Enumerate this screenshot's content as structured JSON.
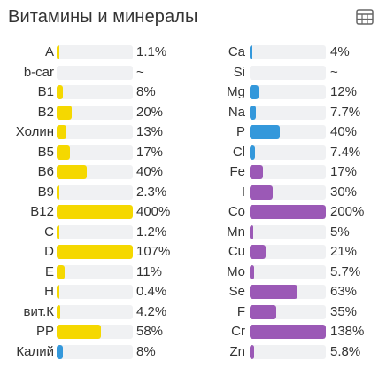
{
  "title": "Витамины и минералы",
  "colors": {
    "vitamin": "#f5d800",
    "mineral": "#9b59b6",
    "macro": "#3498db"
  },
  "left": [
    {
      "label": "A",
      "value": "1.1%",
      "pct": 1.1,
      "color": "#f5d800"
    },
    {
      "label": "b-car",
      "value": "~",
      "pct": 0,
      "color": "#f5d800"
    },
    {
      "label": "B1",
      "value": "8%",
      "pct": 8,
      "color": "#f5d800"
    },
    {
      "label": "B2",
      "value": "20%",
      "pct": 20,
      "color": "#f5d800"
    },
    {
      "label": "Холин",
      "value": "13%",
      "pct": 13,
      "color": "#f5d800"
    },
    {
      "label": "B5",
      "value": "17%",
      "pct": 17,
      "color": "#f5d800"
    },
    {
      "label": "B6",
      "value": "40%",
      "pct": 40,
      "color": "#f5d800"
    },
    {
      "label": "B9",
      "value": "2.3%",
      "pct": 2.3,
      "color": "#f5d800"
    },
    {
      "label": "B12",
      "value": "400%",
      "pct": 400,
      "color": "#f5d800"
    },
    {
      "label": "C",
      "value": "1.2%",
      "pct": 1.2,
      "color": "#f5d800"
    },
    {
      "label": "D",
      "value": "107%",
      "pct": 107,
      "color": "#f5d800"
    },
    {
      "label": "E",
      "value": "11%",
      "pct": 11,
      "color": "#f5d800"
    },
    {
      "label": "H",
      "value": "0.4%",
      "pct": 0.4,
      "color": "#f5d800"
    },
    {
      "label": "вит.К",
      "value": "4.2%",
      "pct": 4.2,
      "color": "#f5d800"
    },
    {
      "label": "PP",
      "value": "58%",
      "pct": 58,
      "color": "#f5d800"
    },
    {
      "label": "Калий",
      "value": "8%",
      "pct": 8,
      "color": "#3498db"
    }
  ],
  "right": [
    {
      "label": "Ca",
      "value": "4%",
      "pct": 4,
      "color": "#3498db"
    },
    {
      "label": "Si",
      "value": "~",
      "pct": 0,
      "color": "#3498db"
    },
    {
      "label": "Mg",
      "value": "12%",
      "pct": 12,
      "color": "#3498db"
    },
    {
      "label": "Na",
      "value": "7.7%",
      "pct": 7.7,
      "color": "#3498db"
    },
    {
      "label": "P",
      "value": "40%",
      "pct": 40,
      "color": "#3498db"
    },
    {
      "label": "Cl",
      "value": "7.4%",
      "pct": 7.4,
      "color": "#3498db"
    },
    {
      "label": "Fe",
      "value": "17%",
      "pct": 17,
      "color": "#9b59b6"
    },
    {
      "label": "I",
      "value": "30%",
      "pct": 30,
      "color": "#9b59b6"
    },
    {
      "label": "Co",
      "value": "200%",
      "pct": 200,
      "color": "#9b59b6"
    },
    {
      "label": "Mn",
      "value": "5%",
      "pct": 5,
      "color": "#9b59b6"
    },
    {
      "label": "Cu",
      "value": "21%",
      "pct": 21,
      "color": "#9b59b6"
    },
    {
      "label": "Mo",
      "value": "5.7%",
      "pct": 5.7,
      "color": "#9b59b6"
    },
    {
      "label": "Se",
      "value": "63%",
      "pct": 63,
      "color": "#9b59b6"
    },
    {
      "label": "F",
      "value": "35%",
      "pct": 35,
      "color": "#9b59b6"
    },
    {
      "label": "Cr",
      "value": "138%",
      "pct": 138,
      "color": "#9b59b6"
    },
    {
      "label": "Zn",
      "value": "5.8%",
      "pct": 5.8,
      "color": "#9b59b6"
    }
  ],
  "icons": {
    "table_toggle": "table-grid-icon"
  }
}
